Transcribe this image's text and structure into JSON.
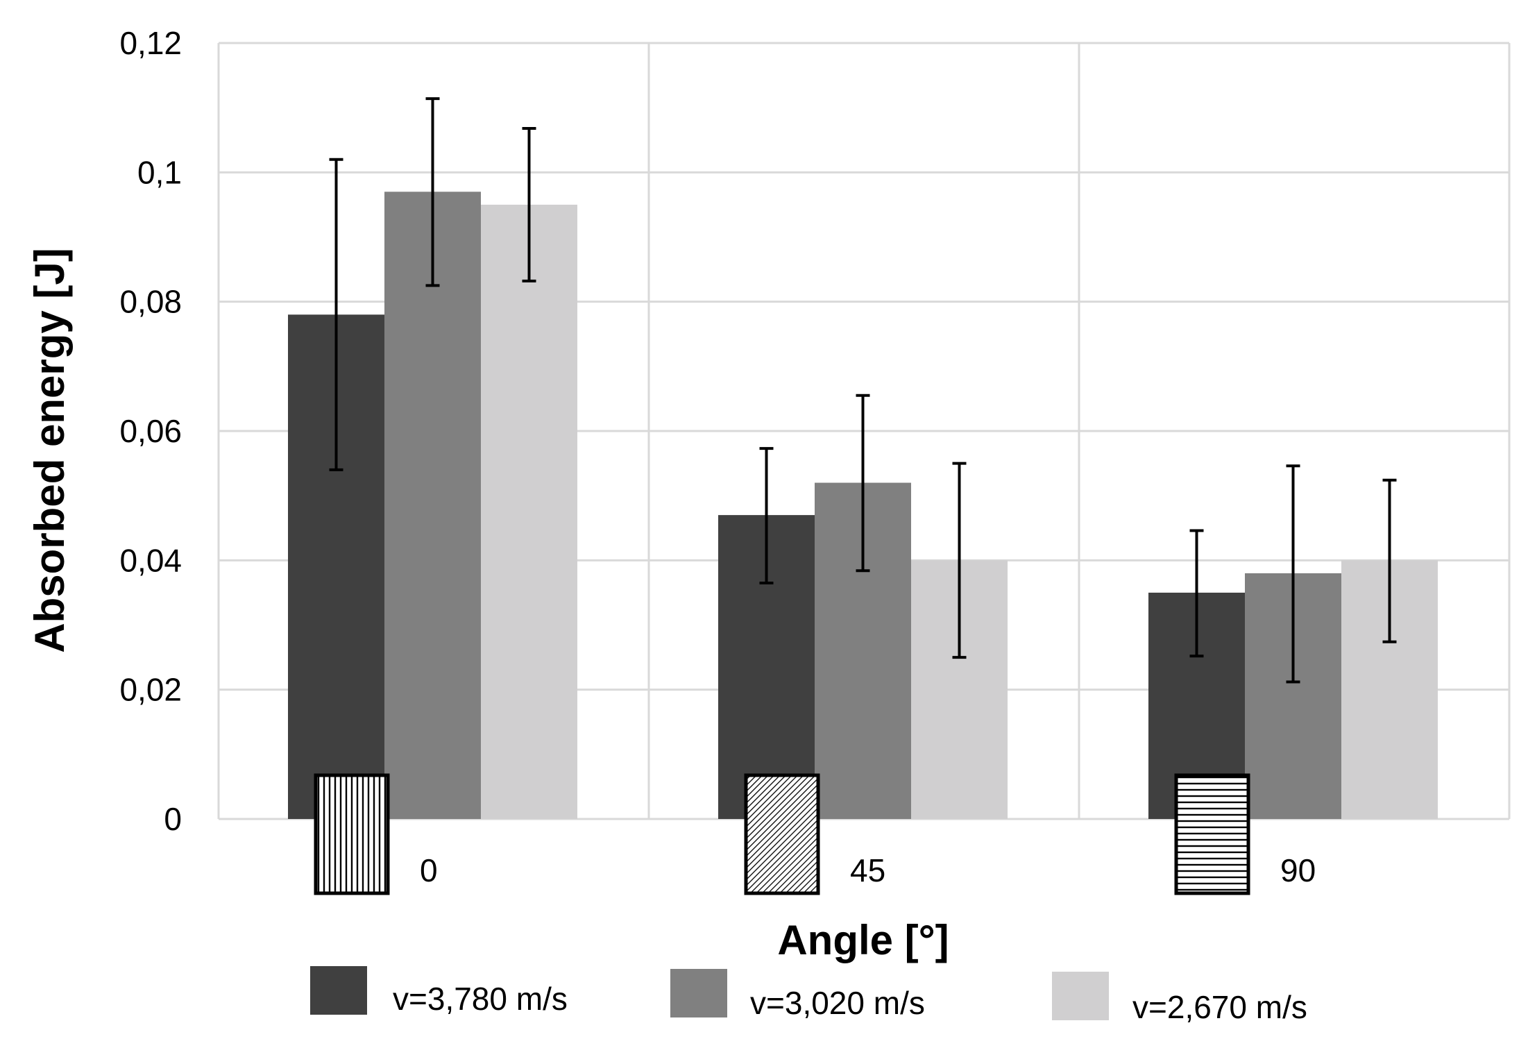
{
  "chart_data": {
    "type": "bar",
    "title": "",
    "xlabel": "Angle [°]",
    "ylabel": "Absorbed energy [J]",
    "categories": [
      "0",
      "45",
      "90"
    ],
    "ylim": [
      0,
      0.12
    ],
    "yticks": [
      0,
      0.02,
      0.04,
      0.06,
      0.08,
      0.1,
      0.12
    ],
    "ytick_labels": [
      "0",
      "0,02",
      "0,04",
      "0,06",
      "0,08",
      "0,1",
      "0,12"
    ],
    "grid": true,
    "legend_position": "bottom",
    "series": [
      {
        "name": "v=3,780 m/s",
        "color": "#404040",
        "values": [
          0.078,
          0.047,
          0.035
        ],
        "error_low": [
          0.054,
          0.0365,
          0.0252
        ],
        "error_high": [
          0.102,
          0.0573,
          0.0446
        ]
      },
      {
        "name": "v=3,020 m/s",
        "color": "#808080",
        "values": [
          0.097,
          0.052,
          0.038
        ],
        "error_low": [
          0.0825,
          0.0384,
          0.0212
        ],
        "error_high": [
          0.1114,
          0.0655,
          0.0546
        ]
      },
      {
        "name": "v=2,670 m/s",
        "color": "#d0cfd0",
        "values": [
          0.095,
          0.04,
          0.04
        ],
        "error_low": [
          0.0832,
          0.025,
          0.0274
        ],
        "error_high": [
          0.1068,
          0.055,
          0.0524
        ]
      }
    ],
    "category_patterns": [
      "vertical-lines",
      "diagonal-lines",
      "horizontal-lines"
    ]
  }
}
